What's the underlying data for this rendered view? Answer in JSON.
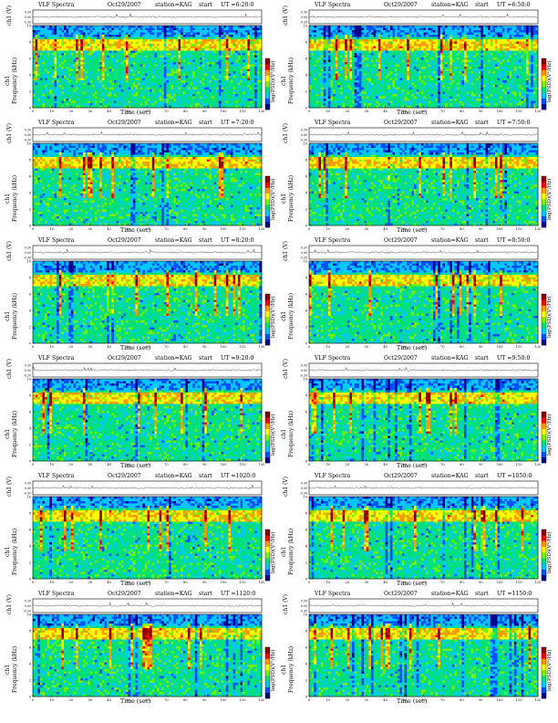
{
  "figure": {
    "title_left": "VLF Spectra",
    "date": "Oct29/2007",
    "station": "station=KAG",
    "start": "start",
    "xlabel": "Time (sec)",
    "ylabel_top": "ch1 (V)",
    "ylabel_freq_a": "ch1",
    "ylabel_freq_b": "Frequency (kHz)",
    "colorbar_label": "log(PSD)(V²/Hz)"
  },
  "panels": [
    {
      "ut": "UT =6:20:0",
      "seed": 11
    },
    {
      "ut": "UT =6:50:0",
      "seed": 23
    },
    {
      "ut": "UT =7:20:0",
      "seed": 37
    },
    {
      "ut": "UT =7:50:0",
      "seed": 41
    },
    {
      "ut": "UT =8:20:0",
      "seed": 53
    },
    {
      "ut": "UT =8:50:0",
      "seed": 67
    },
    {
      "ut": "UT =9:20:0",
      "seed": 71
    },
    {
      "ut": "UT =9:50:0",
      "seed": 83
    },
    {
      "ut": "UT =1020:0",
      "seed": 97
    },
    {
      "ut": "UT =1050:0",
      "seed": 101
    },
    {
      "ut": "UT =1120:0",
      "seed": 113
    },
    {
      "ut": "UT =1150:0",
      "seed": 127
    }
  ],
  "chart_data": {
    "type": "heatmap",
    "x": {
      "label": "Time (sec)",
      "range": [
        0,
        120
      ],
      "ticks": [
        0,
        10,
        20,
        30,
        40,
        50,
        60,
        70,
        80,
        90,
        100,
        110,
        120
      ]
    },
    "y": {
      "label": "Frequency (kHz)",
      "range": [
        0,
        10
      ],
      "ticks": [
        0,
        2,
        4,
        6,
        8,
        10
      ]
    },
    "waveform_axis": {
      "label": "ch1 (V)",
      "ticks": [
        "0.30",
        "0.00",
        "-0.30"
      ]
    },
    "colorscale": [
      "#00008b",
      "#0050ff",
      "#00c8ff",
      "#00e07a",
      "#7cf000",
      "#ffff00",
      "#ff9900",
      "#ff0000",
      "#8b0000"
    ],
    "colorbar_label": "log(PSD)(V²/Hz)"
  }
}
